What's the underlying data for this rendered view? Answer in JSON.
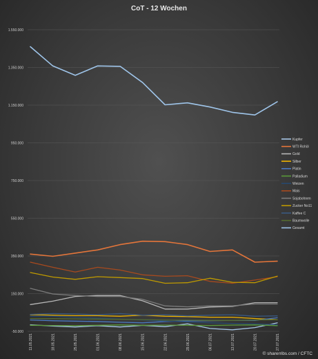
{
  "chart_data": {
    "type": "line",
    "title": "CoT - 12 Wochen",
    "source": "© sharerribs.com / CFTC",
    "categories": [
      "11.05.2021",
      "18.05.2021",
      "25.05.2021",
      "01.06.2021",
      "08.06.2021",
      "15.06.2021",
      "22.06.2021",
      "29.06.2021",
      "06.07.2021",
      "13.07.2021",
      "20.07.2021",
      "27.07.2021"
    ],
    "y_ticks": [
      "1.550.000",
      "1.350.000",
      "1.150.000",
      "950.000",
      "750.000",
      "550.000",
      "350.000",
      "150.000",
      "-50.000"
    ],
    "ylim": [
      -50000,
      1550000
    ],
    "legend_position": "right",
    "series": [
      {
        "name": "Kupfer",
        "color": "#a9c8e8",
        "values": [
          -15000,
          -22000,
          -27000,
          -20000,
          -27000,
          -18000,
          -25000,
          -10000,
          -35000,
          -42000,
          -30000,
          -5000
        ]
      },
      {
        "name": "WTI Rohöl",
        "color": "#e4753a",
        "values": [
          360000,
          348000,
          365000,
          382000,
          410000,
          428000,
          426000,
          410000,
          374000,
          382000,
          317000,
          322000
        ]
      },
      {
        "name": "Gold",
        "color": "#b8b8b8",
        "values": [
          92000,
          110000,
          135000,
          140000,
          140000,
          112000,
          68000,
          68000,
          79000,
          82000,
          102000,
          102000
        ]
      },
      {
        "name": "Silber",
        "color": "#f0b400",
        "values": [
          38000,
          36000,
          33000,
          33000,
          30000,
          36000,
          30000,
          28000,
          25000,
          25000,
          18000,
          12000
        ]
      },
      {
        "name": "Platin",
        "color": "#4a78c0",
        "values": [
          10000,
          6000,
          4000,
          2000,
          -2000,
          -5000,
          2000,
          5000,
          6000,
          8000,
          8000,
          22000
        ]
      },
      {
        "name": "Palladium",
        "color": "#5a9a3a",
        "values": [
          -18000,
          -19000,
          -20000,
          -18000,
          -16000,
          -18000,
          -17000,
          -18000,
          -19000,
          -17000,
          -16000,
          -20000
        ]
      },
      {
        "name": "Weizen",
        "color": "#27486e",
        "values": [
          30000,
          30000,
          25000,
          20000,
          15000,
          10000,
          5000,
          0,
          -5000,
          -8000,
          -10000,
          -15000
        ]
      },
      {
        "name": "Mais",
        "color": "#a84a1e",
        "values": [
          317000,
          290000,
          265000,
          290000,
          275000,
          250000,
          242000,
          245000,
          215000,
          205000,
          222000,
          240000
        ]
      },
      {
        "name": "Sojabohnen",
        "color": "#7c7c7c",
        "values": [
          178000,
          148000,
          140000,
          135000,
          135000,
          120000,
          85000,
          80000,
          85000,
          85000,
          95000,
          95000
        ]
      },
      {
        "name": "Zucker No11",
        "color": "#bf9a00",
        "values": [
          262000,
          238000,
          226000,
          240000,
          235000,
          230000,
          205000,
          208000,
          232000,
          210000,
          208000,
          243000
        ]
      },
      {
        "name": "Kaffee C",
        "color": "#3a5a82",
        "values": [
          40000,
          44000,
          42000,
          38000,
          44000,
          36000,
          38000,
          32000,
          36000,
          38000,
          30000,
          32000
        ]
      },
      {
        "name": "Baumwolle",
        "color": "#556b2f",
        "values": [
          18000,
          17000,
          16000,
          15000,
          14000,
          12000,
          10000,
          9000,
          8000,
          8000,
          10000,
          12000
        ]
      },
      {
        "name": "Gesamt",
        "color": "#9fc5ea",
        "values": [
          1460000,
          1358000,
          1308000,
          1358000,
          1356000,
          1270000,
          1152000,
          1162000,
          1140000,
          1112000,
          1098000,
          1168000
        ]
      }
    ]
  }
}
